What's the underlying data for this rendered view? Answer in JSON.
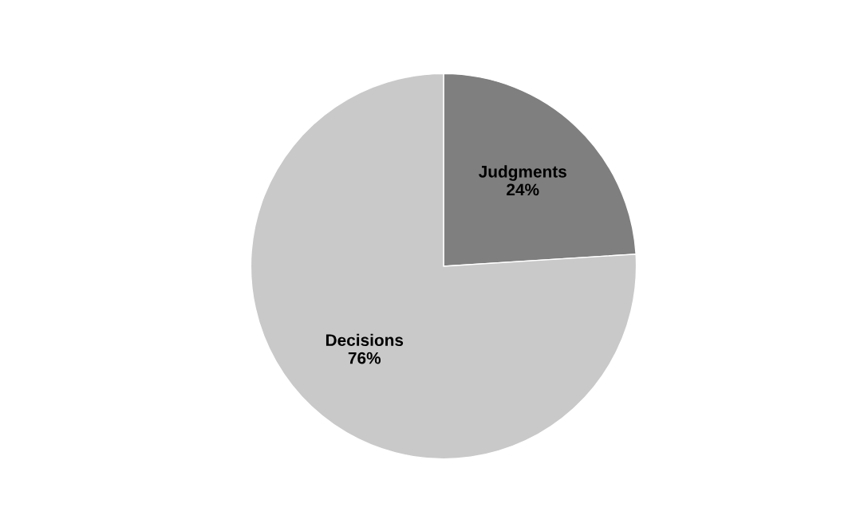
{
  "chart_data": {
    "type": "pie",
    "categories": [
      "Judgments",
      "Decisions"
    ],
    "values": [
      24,
      76
    ],
    "value_labels": [
      "24%",
      "76%"
    ],
    "colors": [
      "#7f7f7f",
      "#c9c9c9"
    ],
    "legend": false
  }
}
